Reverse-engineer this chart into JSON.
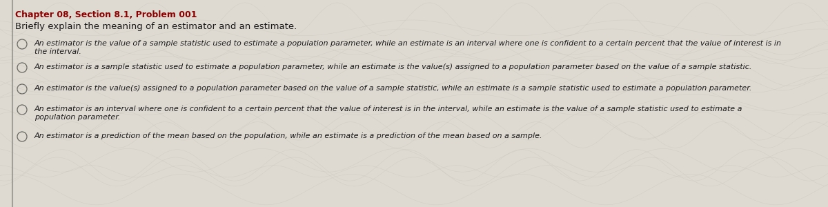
{
  "title": "Chapter 08, Section 8.1, Problem 001",
  "title_color": "#8B0000",
  "title_fontsize": 9,
  "question": "Briefly explain the meaning of an estimator and an estimate.",
  "question_fontsize": 9.5,
  "background_color": "#dedad2",
  "options": [
    {
      "line1": "An estimator is the value of a sample statistic used to estimate a population parameter, while an estimate is an interval where one is confident to a certain percent that the value of interest is in",
      "line2": "the interval."
    },
    {
      "line1": "An estimator is a sample statistic used to estimate a population parameter, while an estimate is the value(s) assigned to a population parameter based on the value of a sample statistic.",
      "line2": ""
    },
    {
      "line1": "An estimator is the value(s) assigned to a population parameter based on the value of a sample statistic, while an estimate is a sample statistic used to estimate a population parameter.",
      "line2": ""
    },
    {
      "line1": "An estimator is an interval where one is confident to a certain percent that the value of interest is in the interval, while an estimate is the value of a sample statistic used to estimate a",
      "line2": "population parameter."
    },
    {
      "line1": "An estimator is a prediction of the mean based on the population, while an estimate is a prediction of the mean based on a sample.",
      "line2": ""
    }
  ],
  "option_fontsize": 8,
  "text_color": "#1a1a1a"
}
